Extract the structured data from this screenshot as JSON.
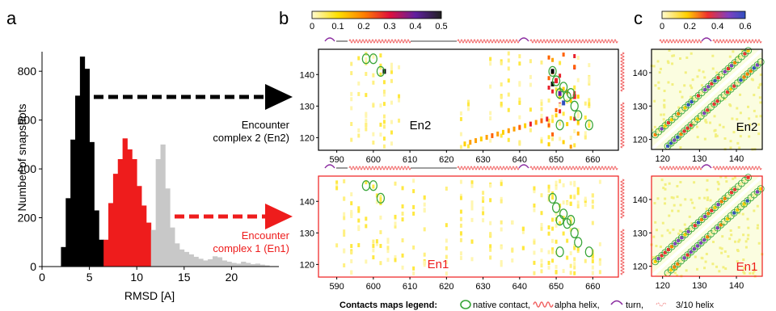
{
  "panels": {
    "a": "a",
    "b": "b",
    "c": "c"
  },
  "colors": {
    "en2": "#000000",
    "en1": "#ee1c1c",
    "gray": "#c8c8c8",
    "native": "#3aa63a",
    "helix": "#f06060",
    "turn": "#8a2ba0",
    "helix310": "#f4a0a0"
  },
  "chart_data": [
    {
      "type": "bar",
      "panel": "a",
      "xlabel": "RMSD [A]",
      "ylabel": "Number of snapshots",
      "xlim": [
        0,
        25
      ],
      "ylim": [
        0,
        880
      ],
      "xticks": [
        "0",
        "5",
        "10",
        "15",
        "20"
      ],
      "yticks": [
        "0",
        "200",
        "400",
        "600",
        "800"
      ],
      "bin_width": 0.5,
      "series": [
        {
          "name": "Encounter complex 2 (En2)",
          "color": "#000000",
          "x": [
            2.0,
            2.5,
            3.0,
            3.5,
            4.0,
            4.5,
            5.0,
            5.5,
            6.0
          ],
          "values": [
            80,
            280,
            520,
            700,
            860,
            810,
            510,
            230,
            110
          ]
        },
        {
          "name": "Encounter complex 1 (En1)",
          "color": "#ee1c1c",
          "x": [
            6.5,
            7.0,
            7.5,
            8.0,
            8.5,
            9.0,
            9.5,
            10.0,
            10.5,
            11.0
          ],
          "values": [
            110,
            260,
            380,
            440,
            525,
            480,
            440,
            330,
            250,
            180
          ]
        },
        {
          "name": "",
          "color": "#c8c8c8",
          "x": [
            11.5,
            12.0,
            12.5,
            13.0,
            13.5,
            14.0,
            14.5,
            15.0,
            15.5,
            16.0,
            16.5,
            17.0,
            17.5,
            18.0,
            18.5,
            19.0,
            19.5,
            20.0,
            20.5,
            21.0,
            21.5,
            22.0,
            22.5,
            23.0,
            23.5
          ],
          "values": [
            150,
            440,
            500,
            320,
            160,
            95,
            70,
            60,
            50,
            40,
            32,
            25,
            30,
            42,
            38,
            25,
            20,
            15,
            12,
            20,
            15,
            10,
            12,
            8,
            5
          ]
        }
      ],
      "annotations": [
        {
          "text": "Encounter",
          "color": "#000000"
        },
        {
          "text": "complex 2 (En2)",
          "color": "#000000"
        },
        {
          "text": "Encounter",
          "color": "#ee1c1c"
        },
        {
          "text": "complex 1 (En1)",
          "color": "#ee1c1c"
        }
      ]
    },
    {
      "type": "heatmap",
      "panel": "b",
      "maps": [
        {
          "label": "En2",
          "label_color": "#000000",
          "frame_color": "#000000"
        },
        {
          "label": "En1",
          "label_color": "#ee1c1c",
          "frame_color": "#ee1c1c"
        }
      ],
      "xlim": [
        585,
        667
      ],
      "ylim": [
        116,
        148
      ],
      "xticks": [
        "590",
        "600",
        "610",
        "620",
        "630",
        "640",
        "650",
        "660"
      ],
      "yticks": [
        "120",
        "130",
        "140"
      ],
      "colorbar": {
        "min": 0,
        "max": 0.5,
        "ticks": [
          "0",
          "0.1",
          "0.2",
          "0.3",
          "0.4",
          "0.5"
        ]
      },
      "native_contacts_x": [
        598,
        600,
        602,
        649,
        650,
        651,
        652,
        653,
        654,
        655,
        656,
        659,
        651
      ],
      "native_contacts_y": [
        145,
        145,
        141,
        141,
        138,
        134,
        136,
        133,
        134,
        130,
        127,
        124,
        124
      ]
    },
    {
      "type": "heatmap",
      "panel": "c",
      "maps": [
        {
          "label": "En2",
          "label_color": "#000000",
          "frame_color": "#000000"
        },
        {
          "label": "En1",
          "label_color": "#ee1c1c",
          "frame_color": "#ee1c1c"
        }
      ],
      "xlim": [
        117,
        147
      ],
      "ylim": [
        117,
        147
      ],
      "xticks": [
        "120",
        "130",
        "140"
      ],
      "yticks": [
        "120",
        "130",
        "140"
      ],
      "colorbar": {
        "min": 0,
        "max": 0.6,
        "ticks": [
          "0",
          "0.2",
          "0.4",
          "0.6"
        ]
      }
    }
  ],
  "legend": {
    "title": "Contacts maps legend:",
    "items": [
      "native contact,",
      "alpha helix,",
      "turn,",
      "3/10 helix"
    ]
  }
}
